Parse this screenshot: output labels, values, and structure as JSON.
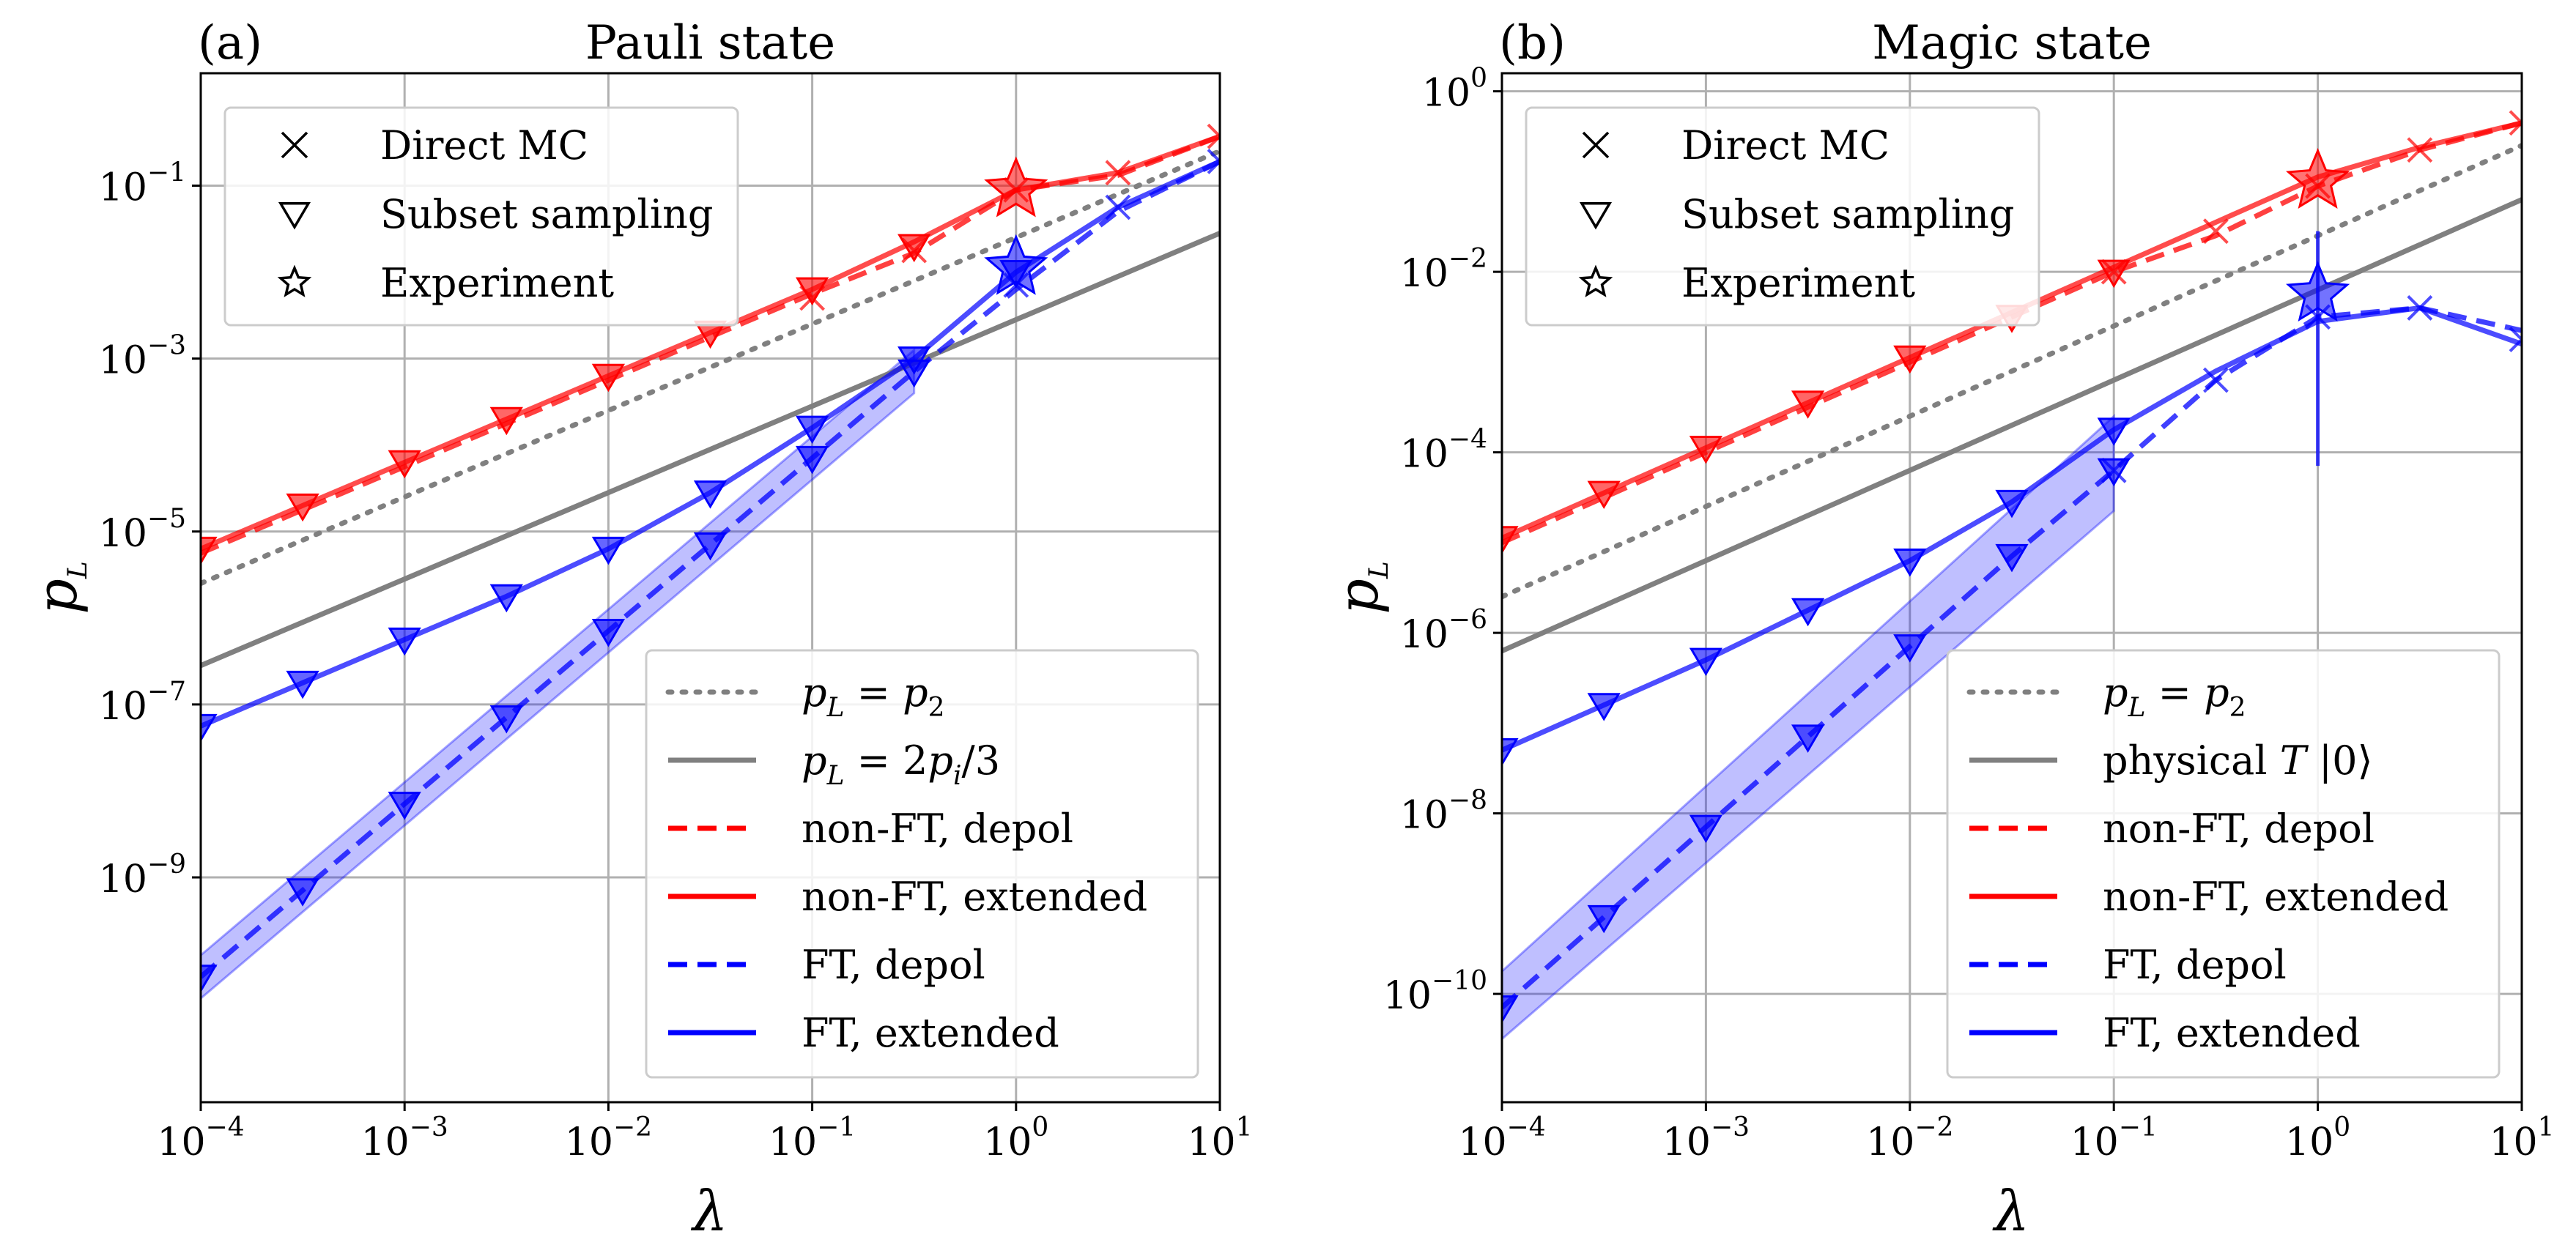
{
  "figure": {
    "scale_labels": {
      "x": "λ",
      "y_main": "p",
      "y_sub": "L"
    },
    "colors": {
      "red": "#ff0000",
      "blue": "#0000ff",
      "gray": "#808080",
      "grid": "#b0b0b0"
    }
  },
  "marker_legend": [
    {
      "symbol": "cross",
      "label": "Direct MC"
    },
    {
      "symbol": "triangle",
      "label": "Subset sampling"
    },
    {
      "symbol": "star",
      "label": "Experiment"
    }
  ],
  "chart_data": [
    {
      "type": "line",
      "panel_label": "(a)",
      "title": "Pauli state",
      "xlabel": "λ",
      "ylabel": "p_L",
      "xscale": "log",
      "yscale": "log",
      "xlim_exp": [
        -4,
        1
      ],
      "ylim_exp": [
        -11.6,
        0.3
      ],
      "x_ticks": [
        {
          "base": "10",
          "exp": "−4",
          "e": -4
        },
        {
          "base": "10",
          "exp": "−3",
          "e": -3
        },
        {
          "base": "10",
          "exp": "−2",
          "e": -2
        },
        {
          "base": "10",
          "exp": "−1",
          "e": -1
        },
        {
          "base": "10",
          "exp": "0",
          "e": 0
        },
        {
          "base": "10",
          "exp": "1",
          "e": 1
        }
      ],
      "y_ticks": [
        {
          "base": "10",
          "exp": "−1",
          "e": -1
        },
        {
          "base": "10",
          "exp": "−3",
          "e": -3
        },
        {
          "base": "10",
          "exp": "−5",
          "e": -5
        },
        {
          "base": "10",
          "exp": "−7",
          "e": -7
        },
        {
          "base": "10",
          "exp": "−9",
          "e": -9
        }
      ],
      "grid": true,
      "legend_position": "lower right",
      "legend": [
        {
          "style": "dotted-gray",
          "label": "p_L = p_2",
          "parts": [
            "p",
            "L",
            " = ",
            "p",
            "2"
          ]
        },
        {
          "style": "solid-gray",
          "label": "p_L = 2p_i/3",
          "parts": [
            "p",
            "L",
            " = 2",
            "p",
            "i",
            "/3"
          ]
        },
        {
          "style": "dashed-red",
          "label": "non-FT, depol"
        },
        {
          "style": "solid-red",
          "label": "non-FT, extended"
        },
        {
          "style": "dashed-blue",
          "label": "FT, depol"
        },
        {
          "style": "solid-blue",
          "label": "FT, extended"
        }
      ],
      "reference_lines": [
        {
          "name": "p_L = p_2",
          "style": "dotted-gray",
          "x": [
            -4,
            1
          ],
          "y": [
            -5.6,
            -0.6
          ]
        },
        {
          "name": "p_L = 2p_i/3",
          "style": "solid-gray",
          "x": [
            -4,
            1
          ],
          "y": [
            -6.55,
            -1.55
          ]
        }
      ],
      "series": [
        {
          "name": "non-FT, depol",
          "color": "red",
          "dash": "dashed",
          "x": [
            -4,
            -3.5,
            -3,
            -2.5,
            -2,
            -1.5,
            -1,
            -0.5,
            0,
            0.5,
            1
          ],
          "y": [
            -5.25,
            -4.75,
            -4.25,
            -3.75,
            -3.25,
            -2.75,
            -2.25,
            -1.78,
            -1.05,
            -0.88,
            -0.43
          ]
        },
        {
          "name": "non-FT, extended",
          "color": "red",
          "dash": "solid",
          "x": [
            -4,
            -3.5,
            -3,
            -2.5,
            -2,
            -1.5,
            -1,
            -0.5,
            0,
            0.5,
            1
          ],
          "y": [
            -5.2,
            -4.7,
            -4.2,
            -3.7,
            -3.2,
            -2.7,
            -2.2,
            -1.65,
            -1.05,
            -0.85,
            -0.43
          ]
        },
        {
          "name": "FT, depol",
          "color": "blue",
          "dash": "dashed",
          "x": [
            -4,
            -3.5,
            -3,
            -2.5,
            -2,
            -1.5,
            -1,
            -0.5,
            0,
            0.5,
            1
          ],
          "y": [
            -10.15,
            -9.15,
            -8.15,
            -7.15,
            -6.15,
            -5.15,
            -4.15,
            -3.15,
            -2.2,
            -1.3,
            -0.72
          ]
        },
        {
          "name": "FT, extended",
          "color": "blue",
          "dash": "solid",
          "x": [
            -4,
            -3.5,
            -3,
            -2.5,
            -2,
            -1.5,
            -1,
            -0.5,
            0,
            0.5,
            1
          ],
          "y": [
            -7.25,
            -6.75,
            -6.25,
            -5.75,
            -5.2,
            -4.55,
            -3.8,
            -3.0,
            -2.0,
            -1.25,
            -0.72
          ]
        }
      ],
      "triangle_markers": {
        "red": {
          "x": [
            -4,
            -3.5,
            -3,
            -2.5,
            -2,
            -1.5,
            -1,
            -0.5
          ],
          "y": [
            -5.2,
            -4.7,
            -4.2,
            -3.7,
            -3.2,
            -2.7,
            -2.2,
            -1.7
          ]
        },
        "blue_ext": {
          "x": [
            -4,
            -3.5,
            -3,
            -2.5,
            -2,
            -1.5,
            -1,
            -0.5,
            0
          ],
          "y": [
            -7.25,
            -6.75,
            -6.25,
            -5.75,
            -5.2,
            -4.55,
            -3.8,
            -3.0,
            -2.0
          ]
        },
        "blue_ft": {
          "x": [
            -4,
            -3.5,
            -3,
            -2.5,
            -2,
            -1.5,
            -1,
            -0.5
          ],
          "y": [
            -10.15,
            -9.15,
            -8.15,
            -7.15,
            -6.15,
            -5.15,
            -4.15,
            -3.15
          ]
        }
      },
      "cross_markers": {
        "red": {
          "x": [
            -1,
            -0.5,
            0,
            0.5,
            1
          ],
          "y": [
            -2.3,
            -1.75,
            -1.05,
            -0.85,
            -0.43
          ]
        },
        "blue": {
          "x": [
            0,
            0.5,
            1
          ],
          "y": [
            -2.15,
            -1.25,
            -0.72
          ]
        }
      },
      "experiment_points": [
        {
          "color": "red",
          "x": 0,
          "y": -1.05
        },
        {
          "color": "blue",
          "x": 0,
          "y": -1.95
        }
      ],
      "error_bars": [],
      "band": {
        "color": "blue",
        "x": [
          -4,
          -0.5
        ],
        "lower": [
          -10.4,
          -3.4
        ],
        "upper": [
          -9.9,
          -2.9
        ]
      }
    },
    {
      "type": "line",
      "panel_label": "(b)",
      "title": "Magic state",
      "xlabel": "λ",
      "ylabel": "p_L",
      "xscale": "log",
      "yscale": "log",
      "xlim_exp": [
        -4,
        1
      ],
      "ylim_exp": [
        -11.2,
        0.2
      ],
      "x_ticks": [
        {
          "base": "10",
          "exp": "−4",
          "e": -4
        },
        {
          "base": "10",
          "exp": "−3",
          "e": -3
        },
        {
          "base": "10",
          "exp": "−2",
          "e": -2
        },
        {
          "base": "10",
          "exp": "−1",
          "e": -1
        },
        {
          "base": "10",
          "exp": "0",
          "e": 0
        },
        {
          "base": "10",
          "exp": "1",
          "e": 1
        }
      ],
      "y_ticks": [
        {
          "base": "10",
          "exp": "0",
          "e": 0
        },
        {
          "base": "10",
          "exp": "−2",
          "e": -2
        },
        {
          "base": "10",
          "exp": "−4",
          "e": -4
        },
        {
          "base": "10",
          "exp": "−6",
          "e": -6
        },
        {
          "base": "10",
          "exp": "−8",
          "e": -8
        },
        {
          "base": "10",
          "exp": "−10",
          "e": -10
        }
      ],
      "grid": true,
      "legend_position": "lower right",
      "legend": [
        {
          "style": "dotted-gray",
          "label": "p_L = p_2",
          "parts": [
            "p",
            "L",
            " = ",
            "p",
            "2"
          ]
        },
        {
          "style": "solid-gray",
          "label": "physical T |0⟩",
          "parts": [
            "physical ",
            "T",
            " |0⟩"
          ]
        },
        {
          "style": "dashed-red",
          "label": "non-FT, depol"
        },
        {
          "style": "solid-red",
          "label": "non-FT, extended"
        },
        {
          "style": "dashed-blue",
          "label": "FT, depol"
        },
        {
          "style": "solid-blue",
          "label": "FT, extended"
        }
      ],
      "reference_lines": [
        {
          "name": "p_L = p_2",
          "style": "dotted-gray",
          "x": [
            -4,
            1
          ],
          "y": [
            -5.6,
            -0.6
          ]
        },
        {
          "name": "physical T |0⟩",
          "style": "solid-gray",
          "x": [
            -4,
            1
          ],
          "y": [
            -6.2,
            -1.2
          ]
        }
      ],
      "series": [
        {
          "name": "non-FT, depol",
          "color": "red",
          "dash": "dashed",
          "x": [
            -4,
            -3.5,
            -3,
            -2.5,
            -2,
            -1.5,
            -1,
            -0.5,
            0,
            0.5,
            1
          ],
          "y": [
            -5.0,
            -4.5,
            -4.0,
            -3.5,
            -3.0,
            -2.5,
            -2.0,
            -1.6,
            -1.05,
            -0.65,
            -0.35
          ]
        },
        {
          "name": "non-FT, extended",
          "color": "red",
          "dash": "solid",
          "x": [
            -4,
            -3.5,
            -3,
            -2.5,
            -2,
            -1.5,
            -1,
            -0.5,
            0,
            0.5,
            1
          ],
          "y": [
            -4.95,
            -4.45,
            -3.95,
            -3.45,
            -2.95,
            -2.45,
            -1.95,
            -1.45,
            -0.95,
            -0.62,
            -0.35
          ]
        },
        {
          "name": "FT, depol",
          "color": "blue",
          "dash": "dashed",
          "x": [
            -4,
            -3.5,
            -3,
            -2.5,
            -2,
            -1.5,
            -1,
            -0.5,
            0,
            0.5,
            1
          ],
          "y": [
            -10.15,
            -9.15,
            -8.15,
            -7.15,
            -6.15,
            -5.15,
            -4.2,
            -3.2,
            -2.5,
            -2.4,
            -2.65
          ]
        },
        {
          "name": "FT, extended",
          "color": "blue",
          "dash": "solid",
          "x": [
            -4,
            -3.5,
            -3,
            -2.5,
            -2,
            -1.5,
            -1,
            -0.5,
            0,
            0.5,
            1
          ],
          "y": [
            -7.3,
            -6.8,
            -6.3,
            -5.75,
            -5.2,
            -4.55,
            -3.75,
            -3.1,
            -2.55,
            -2.4,
            -2.8
          ]
        }
      ],
      "triangle_markers": {
        "red": {
          "x": [
            -4,
            -3.5,
            -3,
            -2.5,
            -2,
            -1.5,
            -1
          ],
          "y": [
            -4.95,
            -4.45,
            -3.95,
            -3.45,
            -2.95,
            -2.5,
            -2.0
          ]
        },
        "blue_ext": {
          "x": [
            -4,
            -3.5,
            -3,
            -2.5,
            -2,
            -1.5,
            -1
          ],
          "y": [
            -7.3,
            -6.8,
            -6.3,
            -5.75,
            -5.2,
            -4.55,
            -3.75
          ]
        },
        "blue_ft": {
          "x": [
            -4,
            -3.5,
            -3,
            -2.5,
            -2,
            -1.5,
            -1
          ],
          "y": [
            -10.15,
            -9.15,
            -8.15,
            -7.15,
            -6.15,
            -5.15,
            -4.2
          ]
        }
      },
      "cross_markers": {
        "red": {
          "x": [
            -1,
            -0.5,
            0,
            0.5,
            1
          ],
          "y": [
            -2.0,
            -1.55,
            -1.05,
            -0.65,
            -0.35
          ]
        },
        "blue": {
          "x": [
            -1,
            -0.5,
            0,
            0.5,
            1
          ],
          "y": [
            -4.2,
            -3.2,
            -2.5,
            -2.4,
            -2.75
          ]
        }
      },
      "experiment_points": [
        {
          "color": "red",
          "x": 0,
          "y": -1.0
        },
        {
          "color": "blue",
          "x": 0,
          "y": -2.25
        }
      ],
      "error_bars": [
        {
          "color": "blue",
          "x": 0,
          "y_low": -4.15,
          "y_high": -1.55
        }
      ],
      "band": {
        "color": "blue",
        "x": [
          -4,
          -1
        ],
        "lower": [
          -10.5,
          -4.65
        ],
        "upper": [
          -9.75,
          -3.6
        ]
      }
    }
  ]
}
